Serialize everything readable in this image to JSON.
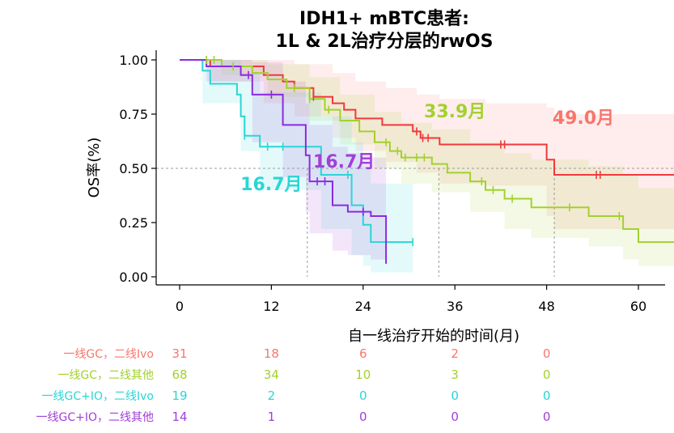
{
  "chart_data": {
    "type": "line",
    "title_lines": [
      "IDH1+ mBTC患者:",
      "1L & 2L治疗分层的rwOS"
    ],
    "xlabel": "自一线治疗开始的时间(月)",
    "ylabel": "OS率(%)",
    "xlim": [
      -5,
      65
    ],
    "ylim": [
      0,
      1.04
    ],
    "x_ticks": [
      0,
      12,
      24,
      36,
      48,
      60
    ],
    "x_tick_labels": [
      "0",
      "12",
      "24",
      "36",
      "48",
      "60"
    ],
    "y_ticks": [
      0,
      0.25,
      0.5,
      0.75,
      1.0
    ],
    "y_tick_labels": [
      "0.00",
      "0.25",
      "0.50",
      "0.75",
      "1.00"
    ],
    "reference_line_y": 0.5,
    "series": [
      {
        "name": "一线GC，二线Ivo",
        "color": "#f8766d",
        "line_color": "#f0393d",
        "median_months": 49.0,
        "median_label": "49.0月",
        "steps": [
          [
            0,
            1.0
          ],
          [
            4.0,
            0.97
          ],
          [
            11.0,
            0.93
          ],
          [
            13.5,
            0.9
          ],
          [
            15.0,
            0.87
          ],
          [
            17.5,
            0.83
          ],
          [
            20.0,
            0.8
          ],
          [
            21.5,
            0.77
          ],
          [
            23.0,
            0.73
          ],
          [
            26.5,
            0.7
          ],
          [
            30.5,
            0.67
          ],
          [
            31.5,
            0.64
          ],
          [
            34.0,
            0.61
          ],
          [
            48.0,
            0.54
          ],
          [
            49.0,
            0.47
          ],
          [
            65.0,
            0.47
          ]
        ],
        "ci_upper": [
          [
            0,
            1.0
          ],
          [
            4.0,
            1.0
          ],
          [
            11.0,
            1.0
          ],
          [
            15.0,
            0.98
          ],
          [
            20.0,
            0.94
          ],
          [
            23.0,
            0.9
          ],
          [
            27.0,
            0.87
          ],
          [
            31.0,
            0.84
          ],
          [
            34.0,
            0.82
          ],
          [
            40.0,
            0.8
          ],
          [
            48.0,
            0.78
          ],
          [
            49.0,
            0.75
          ],
          [
            65.0,
            0.75
          ]
        ],
        "ci_lower": [
          [
            0,
            1.0
          ],
          [
            4.0,
            0.9
          ],
          [
            11.0,
            0.8
          ],
          [
            15.0,
            0.74
          ],
          [
            20.0,
            0.64
          ],
          [
            23.0,
            0.58
          ],
          [
            27.0,
            0.53
          ],
          [
            31.0,
            0.48
          ],
          [
            34.0,
            0.43
          ],
          [
            40.0,
            0.42
          ],
          [
            48.0,
            0.28
          ],
          [
            49.0,
            0.22
          ],
          [
            65.0,
            0.22
          ]
        ],
        "censor_times": [
          17.5,
          31.0,
          31.8,
          32.5,
          42.0,
          42.5,
          54.5,
          55.0
        ],
        "risk_counts": [
          "31",
          "18",
          "6",
          "2",
          "0"
        ]
      },
      {
        "name": "一线GC，二线其他",
        "color": "#a3d12e",
        "line_color": "#a3d12e",
        "median_months": 33.9,
        "median_label": "33.9月",
        "steps": [
          [
            0,
            1.0
          ],
          [
            5.5,
            0.97
          ],
          [
            9.5,
            0.94
          ],
          [
            11.5,
            0.91
          ],
          [
            14.0,
            0.87
          ],
          [
            17.0,
            0.82
          ],
          [
            19.0,
            0.77
          ],
          [
            21.0,
            0.72
          ],
          [
            23.5,
            0.67
          ],
          [
            25.5,
            0.62
          ],
          [
            27.5,
            0.58
          ],
          [
            29.0,
            0.55
          ],
          [
            33.0,
            0.52
          ],
          [
            35.0,
            0.48
          ],
          [
            38.0,
            0.44
          ],
          [
            40.0,
            0.4
          ],
          [
            42.5,
            0.36
          ],
          [
            46.0,
            0.32
          ],
          [
            53.5,
            0.28
          ],
          [
            58.0,
            0.22
          ],
          [
            60.0,
            0.16
          ],
          [
            65.0,
            0.16
          ]
        ],
        "ci_upper": [
          [
            0,
            1.0
          ],
          [
            5.5,
            1.0
          ],
          [
            11.5,
            0.98
          ],
          [
            17.0,
            0.92
          ],
          [
            21.0,
            0.84
          ],
          [
            25.5,
            0.76
          ],
          [
            29.0,
            0.71
          ],
          [
            33.0,
            0.68
          ],
          [
            38.0,
            0.62
          ],
          [
            42.5,
            0.57
          ],
          [
            46.0,
            0.54
          ],
          [
            53.5,
            0.51
          ],
          [
            58.0,
            0.47
          ],
          [
            60.0,
            0.41
          ],
          [
            65.0,
            0.41
          ]
        ],
        "ci_lower": [
          [
            0,
            1.0
          ],
          [
            5.5,
            0.93
          ],
          [
            11.5,
            0.83
          ],
          [
            17.0,
            0.72
          ],
          [
            21.0,
            0.61
          ],
          [
            25.5,
            0.5
          ],
          [
            29.0,
            0.43
          ],
          [
            33.0,
            0.39
          ],
          [
            38.0,
            0.3
          ],
          [
            42.5,
            0.22
          ],
          [
            46.0,
            0.18
          ],
          [
            53.5,
            0.14
          ],
          [
            58.0,
            0.08
          ],
          [
            60.0,
            0.05
          ],
          [
            65.0,
            0.05
          ]
        ],
        "censor_times": [
          3.5,
          4.5,
          7.0,
          15.0,
          17.0,
          19.5,
          27.0,
          28.5,
          29.5,
          31.0,
          32.0,
          39.5,
          41.0,
          43.5,
          51.0,
          57.5
        ],
        "risk_counts": [
          "68",
          "34",
          "10",
          "3",
          "0"
        ]
      },
      {
        "name": "一线GC+IO，二线Ivo",
        "color": "#2bd5d5",
        "line_color": "#2bd5d5",
        "median_months": 16.7,
        "median_label": "16.7月",
        "steps": [
          [
            0,
            1.0
          ],
          [
            3.0,
            0.95
          ],
          [
            4.0,
            0.89
          ],
          [
            7.5,
            0.84
          ],
          [
            8.0,
            0.74
          ],
          [
            8.5,
            0.65
          ],
          [
            10.5,
            0.6
          ],
          [
            18.5,
            0.47
          ],
          [
            22.5,
            0.33
          ],
          [
            24.0,
            0.24
          ],
          [
            25.0,
            0.16
          ],
          [
            30.5,
            0.16
          ]
        ],
        "ci_upper": [
          [
            0,
            1.0
          ],
          [
            3.0,
            1.0
          ],
          [
            8.0,
            0.94
          ],
          [
            10.5,
            0.85
          ],
          [
            18.5,
            0.74
          ],
          [
            22.5,
            0.62
          ],
          [
            24.0,
            0.51
          ],
          [
            25.0,
            0.43
          ],
          [
            30.5,
            0.43
          ]
        ],
        "ci_lower": [
          [
            0,
            1.0
          ],
          [
            3.0,
            0.8
          ],
          [
            8.0,
            0.58
          ],
          [
            10.5,
            0.4
          ],
          [
            18.5,
            0.22
          ],
          [
            22.5,
            0.1
          ],
          [
            24.0,
            0.05
          ],
          [
            25.0,
            0.02
          ],
          [
            30.5,
            0.02
          ]
        ],
        "censor_times": [
          8.5,
          11.5,
          13.5,
          22.0,
          30.5
        ],
        "risk_counts": [
          "19",
          "2",
          "0",
          "0",
          "0"
        ]
      },
      {
        "name": "一线GC+IO，二线其他",
        "color": "#a040d8",
        "line_color": "#8a2be2",
        "median_months": 16.7,
        "median_label": "16.7月",
        "steps": [
          [
            0,
            1.0
          ],
          [
            3.5,
            0.97
          ],
          [
            8.0,
            0.93
          ],
          [
            9.5,
            0.84
          ],
          [
            13.5,
            0.7
          ],
          [
            16.5,
            0.56
          ],
          [
            17.0,
            0.44
          ],
          [
            20.0,
            0.33
          ],
          [
            22.0,
            0.3
          ],
          [
            25.0,
            0.28
          ],
          [
            27.0,
            0.06
          ]
        ],
        "ci_upper": [
          [
            0,
            1.0
          ],
          [
            3.5,
            1.0
          ],
          [
            9.5,
            0.99
          ],
          [
            13.5,
            0.9
          ],
          [
            16.5,
            0.8
          ],
          [
            17.0,
            0.7
          ],
          [
            20.0,
            0.6
          ],
          [
            22.0,
            0.57
          ],
          [
            25.0,
            0.55
          ],
          [
            27.0,
            0.5
          ]
        ],
        "ci_lower": [
          [
            0,
            1.0
          ],
          [
            3.5,
            0.9
          ],
          [
            9.5,
            0.62
          ],
          [
            13.5,
            0.46
          ],
          [
            16.5,
            0.3
          ],
          [
            17.0,
            0.2
          ],
          [
            20.0,
            0.12
          ],
          [
            22.0,
            0.1
          ],
          [
            25.0,
            0.08
          ],
          [
            27.0,
            0.02
          ]
        ],
        "censor_times": [
          9.0,
          12.0,
          18.0,
          19.0,
          24.0
        ],
        "risk_counts": [
          "14",
          "1",
          "0",
          "0",
          "0"
        ]
      }
    ],
    "median_labels_pos": [
      {
        "series": 0,
        "x": 52.8,
        "y": 0.705
      },
      {
        "series": 1,
        "x": 36.0,
        "y": 0.735
      },
      {
        "series": 2,
        "x": 12.0,
        "y": 0.4
      },
      {
        "series": 3,
        "x": 21.5,
        "y": 0.503
      }
    ]
  }
}
